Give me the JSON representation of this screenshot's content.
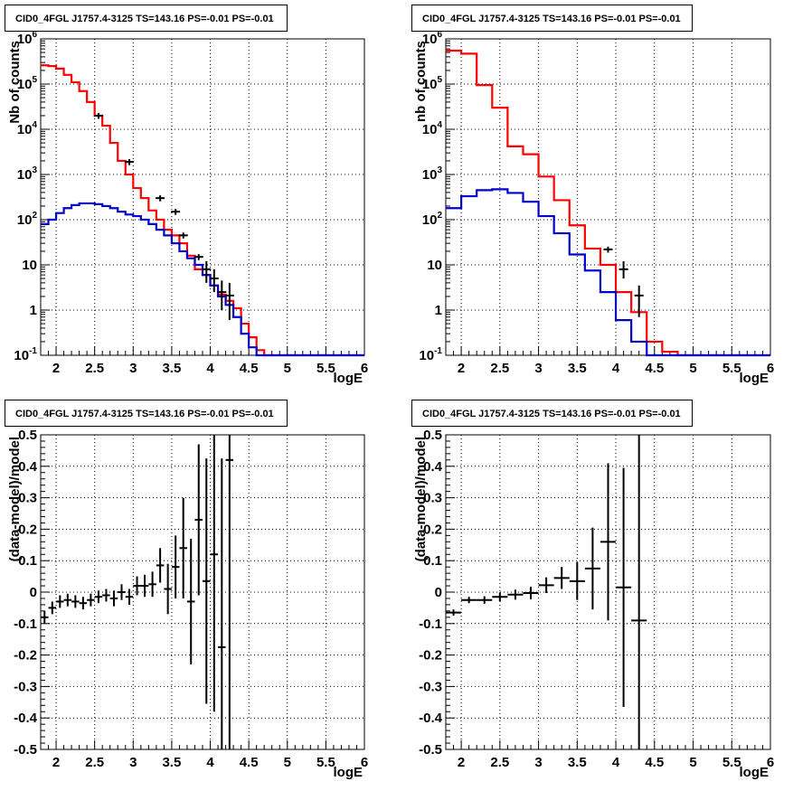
{
  "panels": [
    {
      "id": "tl",
      "title": "CID0_4FGL J1757.4-3125 TS=143.16 PS=-0.01 PS=-0.01",
      "xlabel": "logE",
      "ylabel": "Nb of counts"
    },
    {
      "id": "tr",
      "title": "CID0_4FGL J1757.4-3125 TS=143.16 PS=-0.01 PS=-0.01",
      "xlabel": "logE",
      "ylabel": "nb of counts"
    },
    {
      "id": "bl",
      "title": "CID0_4FGL J1757.4-3125 TS=143.16 PS=-0.01 PS=-0.01",
      "xlabel": "logE",
      "ylabel": "(data-model)/model"
    },
    {
      "id": "br",
      "title": "CID0_4FGL J1757.4-3125 TS=143.16 PS=-0.01 PS=-0.01",
      "xlabel": "logE",
      "ylabel": "(data-model)/model"
    }
  ],
  "colors": {
    "total_model": "#ff0000",
    "source_model": "#0000cc",
    "data": "#000000",
    "grid": "#000000"
  },
  "chart_data": [
    {
      "type": "line",
      "title": "CID0_4FGL J1757.4-3125 TS=143.16 PS=-0.01 PS=-0.01",
      "xlabel": "logE",
      "ylabel": "Nb of counts",
      "xlim": [
        1.8,
        6.0
      ],
      "ylim": [
        0.1,
        1000000
      ],
      "yscale": "log",
      "grid": true,
      "x_ticks": [
        "2",
        "2.5",
        "3",
        "3.5",
        "4",
        "4.5",
        "5",
        "5.5",
        "6"
      ],
      "y_ticks": [
        "10^-1",
        "1",
        "10",
        "10^2",
        "10^3",
        "10^4",
        "10^5",
        "10^6"
      ],
      "bin_edges": [
        1.8,
        1.9,
        2.0,
        2.1,
        2.2,
        2.3,
        2.4,
        2.5,
        2.6,
        2.7,
        2.8,
        2.9,
        3.0,
        3.1,
        3.2,
        3.3,
        3.4,
        3.5,
        3.6,
        3.7,
        3.8,
        3.9,
        4.0,
        4.1,
        4.2,
        4.3,
        4.4,
        4.5,
        4.6,
        4.7,
        4.8,
        4.9,
        5.0,
        5.1,
        5.2,
        5.3,
        5.4,
        5.5,
        5.6,
        5.7,
        5.8,
        5.9,
        6.0
      ],
      "series": [
        {
          "color": "#ff0000",
          "values": [
            260000,
            250000,
            220000,
            160000,
            110000,
            70000,
            40000,
            20000,
            12000,
            5000,
            2000,
            1000,
            500,
            300,
            160,
            100,
            60,
            45,
            30,
            16,
            8,
            6,
            3.5,
            2.2,
            1.6,
            1.1,
            0.5,
            0.25,
            0.13,
            0.1,
            0.1,
            0.1,
            0.1,
            0.1,
            0.1,
            0.1,
            0.1,
            0.1,
            0.1,
            0.1,
            0.1,
            0.1
          ]
        },
        {
          "color": "#0000cc",
          "values": [
            80,
            100,
            140,
            180,
            210,
            230,
            230,
            220,
            200,
            180,
            150,
            130,
            120,
            100,
            80,
            60,
            45,
            30,
            20,
            14,
            10,
            6,
            3.5,
            2,
            1.3,
            0.7,
            0.3,
            0.15,
            0.1,
            0.1,
            0.1,
            0.1,
            0.1,
            0.1,
            0.1,
            0.1,
            0.1,
            0.1,
            0.1,
            0.1,
            0.1,
            0.1
          ]
        }
      ],
      "data_points": [
        {
          "x": 2.55,
          "y": 20000
        },
        {
          "x": 2.95,
          "y": 1900
        },
        {
          "x": 3.35,
          "y": 300
        },
        {
          "x": 3.55,
          "y": 150
        },
        {
          "x": 3.65,
          "y": 45
        },
        {
          "x": 3.85,
          "y": 15
        },
        {
          "x": 3.95,
          "y": 8,
          "err": [
            4,
            12
          ]
        },
        {
          "x": 4.05,
          "y": 5,
          "err": [
            2.5,
            8
          ]
        },
        {
          "x": 4.15,
          "y": 2.5,
          "err": [
            1,
            4.5
          ]
        },
        {
          "x": 4.25,
          "y": 2.1,
          "err": [
            0.6,
            4
          ]
        }
      ]
    },
    {
      "type": "line",
      "title": "CID0_4FGL J1757.4-3125 TS=143.16 PS=-0.01 PS=-0.01",
      "xlabel": "logE",
      "ylabel": "nb of counts",
      "xlim": [
        1.8,
        6.0
      ],
      "ylim": [
        0.1,
        1000000
      ],
      "yscale": "log",
      "grid": true,
      "x_ticks": [
        "2",
        "2.5",
        "3",
        "3.5",
        "4",
        "4.5",
        "5",
        "5.5",
        "6"
      ],
      "y_ticks": [
        "10^-1",
        "1",
        "10",
        "10^2",
        "10^3",
        "10^4",
        "10^5",
        "10^6"
      ],
      "bin_edges": [
        1.8,
        2.0,
        2.2,
        2.4,
        2.6,
        2.8,
        3.0,
        3.2,
        3.4,
        3.6,
        3.8,
        4.0,
        4.2,
        4.4,
        4.6,
        4.8,
        5.0,
        5.2,
        5.4,
        5.6,
        5.8,
        6.0
      ],
      "series": [
        {
          "color": "#ff0000",
          "values": [
            550000,
            470000,
            95000,
            30000,
            4200,
            2800,
            900,
            270,
            75,
            23,
            10,
            2.5,
            0.9,
            0.2,
            0.12,
            0.1,
            0.1,
            0.1,
            0.1,
            0.1,
            0.1
          ]
        },
        {
          "color": "#0000cc",
          "values": [
            180,
            330,
            450,
            470,
            390,
            250,
            120,
            50,
            17,
            7.5,
            2.5,
            0.6,
            0.2,
            0.1,
            0.1,
            0.1,
            0.1,
            0.1,
            0.1,
            0.1,
            0.1
          ]
        }
      ],
      "data_points": [
        {
          "x": 3.9,
          "y": 22
        },
        {
          "x": 4.1,
          "y": 8,
          "err": [
            5,
            12
          ]
        },
        {
          "x": 4.3,
          "y": 2.1,
          "err": [
            0.7,
            3.5
          ]
        }
      ]
    },
    {
      "type": "scatter",
      "title": "CID0_4FGL J1757.4-3125 TS=143.16 PS=-0.01 PS=-0.01",
      "xlabel": "logE",
      "ylabel": "(data-model)/model",
      "xlim": [
        1.8,
        6.0
      ],
      "ylim": [
        -0.5,
        0.5
      ],
      "grid": true,
      "x_ticks": [
        "2",
        "2.5",
        "3",
        "3.5",
        "4",
        "4.5",
        "5",
        "5.5",
        "6"
      ],
      "y_ticks": [
        "-0.5",
        "-0.4",
        "-0.3",
        "-0.2",
        "-0.1",
        "0",
        "0.1",
        "0.2",
        "0.3",
        "0.4",
        "0.5"
      ],
      "points": [
        {
          "x": 1.85,
          "y": -0.08,
          "err": 0.02
        },
        {
          "x": 1.95,
          "y": -0.05,
          "err": 0.02
        },
        {
          "x": 2.05,
          "y": -0.03,
          "err": 0.02
        },
        {
          "x": 2.15,
          "y": -0.025,
          "err": 0.02
        },
        {
          "x": 2.25,
          "y": -0.03,
          "err": 0.02
        },
        {
          "x": 2.35,
          "y": -0.035,
          "err": 0.02
        },
        {
          "x": 2.45,
          "y": -0.025,
          "err": 0.02
        },
        {
          "x": 2.55,
          "y": -0.015,
          "err": 0.02
        },
        {
          "x": 2.65,
          "y": -0.01,
          "err": 0.02
        },
        {
          "x": 2.75,
          "y": -0.02,
          "err": 0.025
        },
        {
          "x": 2.85,
          "y": 0.0,
          "err": 0.025
        },
        {
          "x": 2.95,
          "y": -0.015,
          "err": 0.025
        },
        {
          "x": 3.05,
          "y": 0.02,
          "err": 0.03
        },
        {
          "x": 3.15,
          "y": 0.02,
          "err": 0.035
        },
        {
          "x": 3.25,
          "y": 0.025,
          "err": 0.04
        },
        {
          "x": 3.35,
          "y": 0.085,
          "err": 0.055
        },
        {
          "x": 3.45,
          "y": 0.01,
          "err": 0.08
        },
        {
          "x": 3.55,
          "y": 0.08,
          "err": 0.1
        },
        {
          "x": 3.65,
          "y": 0.14,
          "err": 0.16
        },
        {
          "x": 3.75,
          "y": -0.03,
          "err": 0.2
        },
        {
          "x": 3.85,
          "y": 0.23,
          "err": 0.24
        },
        {
          "x": 3.95,
          "y": 0.035,
          "err": 0.39
        },
        {
          "x": 4.05,
          "y": 0.12,
          "err": 0.5
        },
        {
          "x": 4.15,
          "y": -0.175,
          "err": 0.6
        },
        {
          "x": 4.25,
          "y": 0.42,
          "err": 1.0
        }
      ]
    },
    {
      "type": "scatter",
      "title": "CID0_4FGL J1757.4-3125 TS=143.16 PS=-0.01 PS=-0.01",
      "xlabel": "logE",
      "ylabel": "(data-model)/model",
      "xlim": [
        1.8,
        6.0
      ],
      "ylim": [
        -0.5,
        0.5
      ],
      "grid": true,
      "x_ticks": [
        "2",
        "2.5",
        "3",
        "3.5",
        "4",
        "4.5",
        "5",
        "5.5",
        "6"
      ],
      "y_ticks": [
        "-0.5",
        "-0.4",
        "-0.3",
        "-0.2",
        "-0.1",
        "0",
        "0.1",
        "0.2",
        "0.3",
        "0.4",
        "0.5"
      ],
      "points": [
        {
          "x": 1.9,
          "y": -0.065,
          "err": 0.01
        },
        {
          "x": 2.1,
          "y": -0.025,
          "err": 0.01
        },
        {
          "x": 2.3,
          "y": -0.025,
          "err": 0.012
        },
        {
          "x": 2.5,
          "y": -0.015,
          "err": 0.014
        },
        {
          "x": 2.7,
          "y": -0.008,
          "err": 0.016
        },
        {
          "x": 2.9,
          "y": -0.003,
          "err": 0.02
        },
        {
          "x": 3.1,
          "y": 0.022,
          "err": 0.025
        },
        {
          "x": 3.3,
          "y": 0.045,
          "err": 0.035
        },
        {
          "x": 3.5,
          "y": 0.035,
          "err": 0.06
        },
        {
          "x": 3.7,
          "y": 0.075,
          "err": 0.13
        },
        {
          "x": 3.9,
          "y": 0.16,
          "err": 0.25
        },
        {
          "x": 4.1,
          "y": 0.015,
          "err": 0.38
        },
        {
          "x": 4.3,
          "y": -0.09,
          "err": 1.0
        }
      ]
    }
  ]
}
